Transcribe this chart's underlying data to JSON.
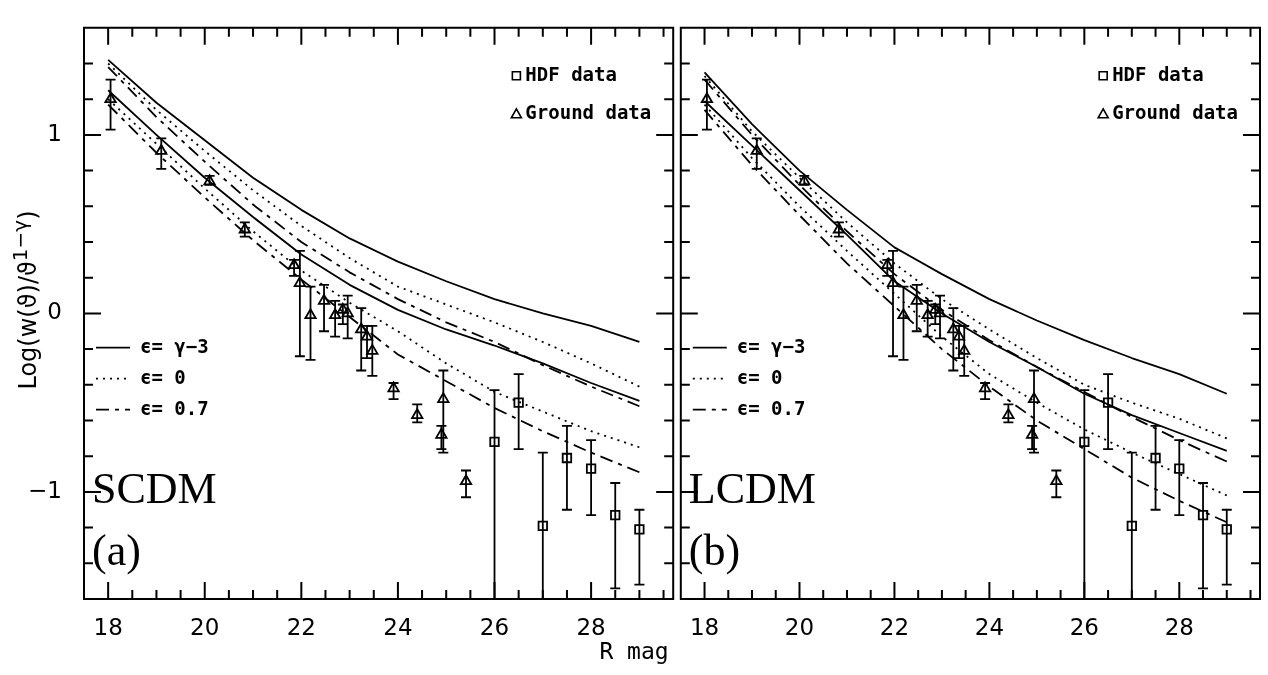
{
  "chart_data": [
    {
      "type": "scatter",
      "xlabel": "R mag",
      "ylabel": "Log(w(ϑ)/ϑ$^{1−γ}$)",
      "annotations": [
        "SCDM",
        "(a)"
      ],
      "legend": "top right",
      "grid": false,
      "xlim": [
        17.5,
        29.7
      ],
      "ylim": [
        -1.6,
        1.6
      ],
      "xticks": [
        18,
        {
          "value": 18.5,
          "label": null
        },
        {
          "value": 19,
          "label": null
        },
        {
          "value": 19.5,
          "label": null
        },
        20,
        {
          "value": 20.5,
          "label": null
        },
        {
          "value": 21,
          "label": null
        },
        {
          "value": 21.5,
          "label": null
        },
        22,
        {
          "value": 22.5,
          "label": null
        },
        {
          "value": 23,
          "label": null
        },
        {
          "value": 23.5,
          "label": null
        },
        24,
        {
          "value": 24.5,
          "label": null
        },
        {
          "value": 25,
          "label": null
        },
        {
          "value": 25.5,
          "label": null
        },
        26,
        {
          "value": 26.5,
          "label": null
        },
        {
          "value": 27,
          "label": null
        },
        {
          "value": 27.5,
          "label": null
        },
        28,
        {
          "value": 28.5,
          "label": null
        },
        {
          "value": 29,
          "label": null
        },
        {
          "value": 29.5,
          "label": null
        }
      ],
      "yticks": [
        {
          "value": -1.4,
          "label": null
        },
        {
          "value": -1.2,
          "label": null
        },
        -1,
        {
          "value": -0.8,
          "label": null
        },
        {
          "value": -0.6,
          "label": null
        },
        {
          "value": -0.4,
          "label": null
        },
        {
          "value": -0.2,
          "label": null
        },
        0,
        {
          "value": 0.2,
          "label": null
        },
        {
          "value": 0.4,
          "label": null
        },
        {
          "value": 0.6,
          "label": null
        },
        {
          "value": 0.8,
          "label": null
        },
        1,
        {
          "value": 1.2,
          "label": null
        },
        {
          "value": 1.4,
          "label": null
        }
      ],
      "series": [
        {
          "name": "HDF data",
          "type": "scatter",
          "marker": "square",
          "color": "#000000",
          "x": [
            26.0,
            26.5,
            27.0,
            27.5,
            28.0,
            28.5,
            29.0
          ],
          "values": [
            -0.72,
            -0.5,
            -1.19,
            -0.81,
            -0.87,
            -1.13,
            -1.21
          ],
          "errors": [
            [
              -1.6,
              -0.43
            ],
            [
              -0.76,
              -0.34
            ],
            [
              -1.6,
              -0.78
            ],
            [
              -1.1,
              -0.63
            ],
            [
              -1.13,
              -0.71
            ],
            [
              -1.54,
              -0.95
            ],
            [
              -1.52,
              -1.1
            ]
          ]
        },
        {
          "name": "Ground data",
          "type": "scatter",
          "marker": "triangle",
          "color": "#000000",
          "x": [
            18.05,
            19.1,
            20.1,
            20.83,
            21.85,
            21.97,
            22.19,
            22.47,
            22.7,
            22.86,
            22.96,
            23.24,
            23.36,
            23.47,
            23.91,
            24.4,
            24.94,
            24.9,
            25.41
          ],
          "values": [
            1.2,
            0.91,
            0.74,
            0.47,
            0.27,
            0.17,
            -0.01,
            0.07,
            -0.01,
            0.02,
            0.0,
            -0.09,
            -0.13,
            -0.21,
            -0.42,
            -0.57,
            -0.48,
            -0.68,
            -0.94
          ],
          "errors": [
            [
              1.03,
              1.31
            ],
            [
              0.81,
              0.98
            ],
            [
              0.72,
              0.77
            ],
            [
              0.43,
              0.51
            ],
            [
              0.21,
              0.3
            ],
            [
              -0.24,
              0.35
            ],
            [
              -0.26,
              0.15
            ],
            [
              -0.1,
              0.16
            ],
            [
              -0.13,
              0.07
            ],
            [
              -0.06,
              0.05
            ],
            [
              -0.14,
              0.1
            ],
            [
              -0.32,
              0.03
            ],
            [
              -0.25,
              -0.07
            ],
            [
              -0.35,
              -0.07
            ],
            [
              -0.48,
              -0.39
            ],
            [
              -0.61,
              -0.51
            ],
            [
              -0.78,
              -0.32
            ],
            [
              -0.76,
              -0.63
            ],
            [
              -1.03,
              -0.88
            ]
          ]
        },
        {
          "name": "ϵ= γ−3",
          "type": "line",
          "line_style": "solid",
          "marker": "none",
          "color": "#000000",
          "x": [
            18,
            19,
            20,
            21,
            22,
            23,
            24,
            25,
            26,
            27,
            28,
            29
          ],
          "values": [
            1.42,
            1.18,
            0.97,
            0.76,
            0.58,
            0.42,
            0.29,
            0.18,
            0.08,
            0.0,
            -0.07,
            -0.16
          ]
        },
        {
          "name": "ϵ= 0",
          "type": "line",
          "line_style": "dotted",
          "marker": "none",
          "color": "#000000",
          "x": [
            18,
            19,
            20,
            21,
            22,
            23,
            24,
            25,
            26,
            27,
            28,
            29
          ],
          "values": [
            1.4,
            1.14,
            0.91,
            0.69,
            0.49,
            0.31,
            0.15,
            0.05,
            -0.05,
            -0.16,
            -0.28,
            -0.41
          ]
        },
        {
          "name": "ϵ= 0.7",
          "type": "line",
          "line_style": "dashed",
          "marker": "none",
          "color": "#000000",
          "x": [
            18,
            19,
            20,
            21,
            22,
            23,
            24,
            25,
            26,
            27,
            28,
            29
          ],
          "values": [
            1.38,
            1.1,
            0.85,
            0.61,
            0.4,
            0.23,
            0.08,
            -0.05,
            -0.16,
            -0.29,
            -0.41,
            -0.52
          ]
        },
        {
          "type": "line",
          "line_style": "solid",
          "marker": "none",
          "color": "#000000",
          "x": [
            18,
            19,
            20,
            21,
            22,
            23,
            24,
            25,
            26,
            27,
            28,
            29
          ],
          "values": [
            1.25,
            1.0,
            0.76,
            0.54,
            0.33,
            0.16,
            0.02,
            -0.09,
            -0.18,
            -0.28,
            -0.39,
            -0.49
          ]
        },
        {
          "type": "line",
          "line_style": "dotted",
          "marker": "none",
          "color": "#000000",
          "x": [
            18,
            19,
            20,
            21,
            22,
            23,
            24,
            25,
            26,
            27,
            28,
            29
          ],
          "values": [
            1.2,
            0.95,
            0.7,
            0.46,
            0.24,
            0.06,
            -0.1,
            -0.28,
            -0.44,
            -0.55,
            -0.66,
            -0.75
          ]
        },
        {
          "type": "line",
          "line_style": "dashed",
          "marker": "none",
          "color": "#000000",
          "x": [
            18,
            19,
            20,
            21,
            22,
            23,
            24,
            25,
            26,
            27,
            28,
            29
          ],
          "values": [
            1.17,
            0.9,
            0.65,
            0.41,
            0.19,
            -0.02,
            -0.23,
            -0.38,
            -0.53,
            -0.66,
            -0.78,
            -0.89
          ]
        }
      ]
    },
    {
      "type": "scatter",
      "annotations": [
        "LCDM",
        "(b)"
      ],
      "legend": "top right",
      "grid": false,
      "tick_labels": "x",
      "xlim": [
        17.5,
        29.7
      ],
      "ylim": [
        -1.6,
        1.6
      ],
      "xticks": [
        18,
        {
          "value": 18.5,
          "label": null
        },
        {
          "value": 19,
          "label": null
        },
        {
          "value": 19.5,
          "label": null
        },
        20,
        {
          "value": 20.5,
          "label": null
        },
        {
          "value": 21,
          "label": null
        },
        {
          "value": 21.5,
          "label": null
        },
        22,
        {
          "value": 22.5,
          "label": null
        },
        {
          "value": 23,
          "label": null
        },
        {
          "value": 23.5,
          "label": null
        },
        24,
        {
          "value": 24.5,
          "label": null
        },
        {
          "value": 25,
          "label": null
        },
        {
          "value": 25.5,
          "label": null
        },
        26,
        {
          "value": 26.5,
          "label": null
        },
        {
          "value": 27,
          "label": null
        },
        {
          "value": 27.5,
          "label": null
        },
        28,
        {
          "value": 28.5,
          "label": null
        },
        {
          "value": 29,
          "label": null
        },
        {
          "value": 29.5,
          "label": null
        }
      ],
      "yticks": [
        {
          "value": -1.4,
          "label": null
        },
        {
          "value": -1.2,
          "label": null
        },
        -1,
        {
          "value": -0.8,
          "label": null
        },
        {
          "value": -0.6,
          "label": null
        },
        {
          "value": -0.4,
          "label": null
        },
        {
          "value": -0.2,
          "label": null
        },
        0,
        {
          "value": 0.2,
          "label": null
        },
        {
          "value": 0.4,
          "label": null
        },
        {
          "value": 0.6,
          "label": null
        },
        {
          "value": 0.8,
          "label": null
        },
        1,
        {
          "value": 1.2,
          "label": null
        },
        {
          "value": 1.4,
          "label": null
        }
      ],
      "series": [
        {
          "name": "HDF data",
          "type": "scatter",
          "marker": "square",
          "color": "#000000",
          "x": [
            26.0,
            26.5,
            27.0,
            27.5,
            28.0,
            28.5,
            29.0
          ],
          "values": [
            -0.72,
            -0.5,
            -1.19,
            -0.81,
            -0.87,
            -1.13,
            -1.21
          ],
          "errors": [
            [
              -1.6,
              -0.43
            ],
            [
              -0.76,
              -0.34
            ],
            [
              -1.6,
              -0.78
            ],
            [
              -1.1,
              -0.63
            ],
            [
              -1.13,
              -0.71
            ],
            [
              -1.54,
              -0.95
            ],
            [
              -1.52,
              -1.1
            ]
          ]
        },
        {
          "name": "Ground data",
          "type": "scatter",
          "marker": "triangle",
          "color": "#000000",
          "x": [
            18.05,
            19.1,
            20.1,
            20.83,
            21.85,
            21.97,
            22.19,
            22.47,
            22.7,
            22.86,
            22.96,
            23.24,
            23.36,
            23.47,
            23.91,
            24.4,
            24.94,
            24.9,
            25.41
          ],
          "values": [
            1.2,
            0.91,
            0.74,
            0.47,
            0.27,
            0.17,
            -0.01,
            0.07,
            -0.01,
            0.02,
            0.0,
            -0.09,
            -0.13,
            -0.21,
            -0.42,
            -0.57,
            -0.48,
            -0.68,
            -0.94
          ],
          "errors": [
            [
              1.03,
              1.31
            ],
            [
              0.81,
              0.98
            ],
            [
              0.72,
              0.77
            ],
            [
              0.43,
              0.51
            ],
            [
              0.21,
              0.3
            ],
            [
              -0.24,
              0.35
            ],
            [
              -0.26,
              0.15
            ],
            [
              -0.1,
              0.16
            ],
            [
              -0.13,
              0.07
            ],
            [
              -0.06,
              0.05
            ],
            [
              -0.14,
              0.1
            ],
            [
              -0.32,
              0.03
            ],
            [
              -0.25,
              -0.07
            ],
            [
              -0.35,
              -0.07
            ],
            [
              -0.48,
              -0.39
            ],
            [
              -0.61,
              -0.51
            ],
            [
              -0.78,
              -0.32
            ],
            [
              -0.76,
              -0.63
            ],
            [
              -1.03,
              -0.88
            ]
          ]
        },
        {
          "name": "ϵ= γ−3",
          "type": "line",
          "line_style": "solid",
          "marker": "none",
          "color": "#000000",
          "x": [
            18,
            19,
            20,
            21,
            22,
            23,
            24,
            25,
            26,
            27,
            28,
            29
          ],
          "values": [
            1.35,
            1.06,
            0.8,
            0.58,
            0.37,
            0.22,
            0.08,
            -0.04,
            -0.15,
            -0.25,
            -0.34,
            -0.45
          ]
        },
        {
          "name": "ϵ= 0",
          "type": "line",
          "line_style": "dotted",
          "marker": "none",
          "color": "#000000",
          "x": [
            18,
            19,
            20,
            21,
            22,
            23,
            24,
            25,
            26,
            27,
            28,
            29
          ],
          "values": [
            1.33,
            1.02,
            0.76,
            0.51,
            0.28,
            0.08,
            -0.09,
            -0.25,
            -0.4,
            -0.5,
            -0.59,
            -0.7
          ]
        },
        {
          "name": "ϵ= 0.7",
          "type": "line",
          "line_style": "dashed",
          "marker": "none",
          "color": "#000000",
          "x": [
            18,
            19,
            20,
            21,
            22,
            23,
            24,
            25,
            26,
            27,
            28,
            29
          ],
          "values": [
            1.31,
            1.0,
            0.72,
            0.46,
            0.22,
            0.02,
            -0.15,
            -0.3,
            -0.44,
            -0.58,
            -0.71,
            -0.83
          ]
        },
        {
          "type": "line",
          "line_style": "solid",
          "marker": "none",
          "color": "#000000",
          "x": [
            18,
            19,
            20,
            21,
            22,
            23,
            24,
            25,
            26,
            27,
            28,
            29
          ],
          "values": [
            1.19,
            0.94,
            0.69,
            0.44,
            0.18,
            0.0,
            -0.16,
            -0.3,
            -0.45,
            -0.57,
            -0.67,
            -0.77
          ]
        },
        {
          "type": "line",
          "line_style": "dotted",
          "marker": "none",
          "color": "#000000",
          "x": [
            18,
            19,
            20,
            21,
            22,
            23,
            24,
            25,
            26,
            27,
            28,
            29
          ],
          "values": [
            1.17,
            0.87,
            0.6,
            0.35,
            0.11,
            -0.13,
            -0.34,
            -0.5,
            -0.65,
            -0.78,
            -0.9,
            -1.02
          ]
        },
        {
          "type": "line",
          "line_style": "dashed",
          "marker": "none",
          "color": "#000000",
          "x": [
            18,
            19,
            20,
            21,
            22,
            23,
            24,
            25,
            26,
            27,
            28,
            29
          ],
          "values": [
            1.14,
            0.83,
            0.55,
            0.28,
            0.04,
            -0.2,
            -0.41,
            -0.6,
            -0.76,
            -0.92,
            -1.05,
            -1.17
          ]
        }
      ]
    }
  ]
}
